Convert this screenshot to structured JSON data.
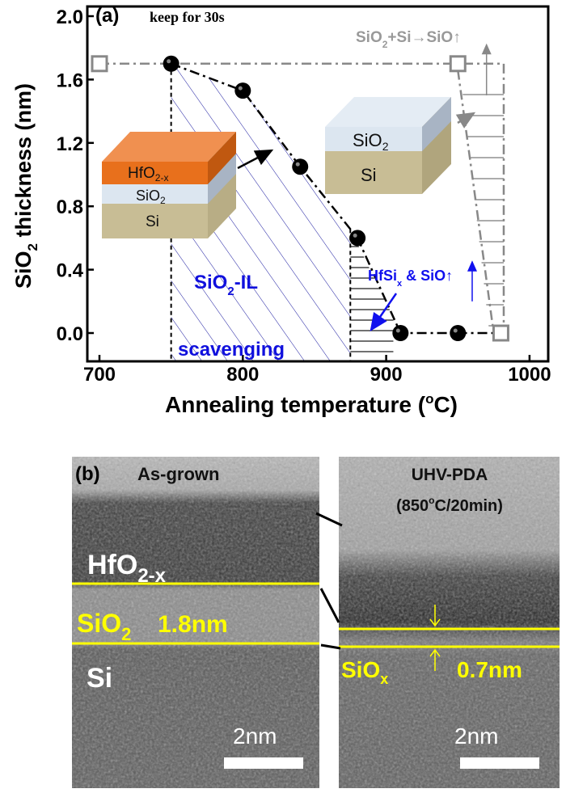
{
  "chart_data": {
    "type": "scatter",
    "panel_label": "(a)",
    "annotation_keep": "keep for 30s",
    "xlabel": "Annealing temperature (oC)",
    "xlabel_parts": {
      "main": "Annealing temperature (",
      "sup": "o",
      "end": "C)"
    },
    "ylabel_parts": {
      "pre": "SiO",
      "sub": "2",
      "post": " thickness (nm)"
    },
    "xlim": [
      690,
      1010
    ],
    "ylim": [
      -0.2,
      2.1
    ],
    "xticks": [
      "700",
      "800",
      "900",
      "1000"
    ],
    "xtick_values": [
      700,
      800,
      900,
      1000
    ],
    "yticks": [
      "0.0",
      "0.4",
      "0.8",
      "1.2",
      "1.6",
      "2.0"
    ],
    "ytick_values": [
      0.0,
      0.4,
      0.8,
      1.2,
      1.6,
      2.0
    ],
    "grid": false,
    "series": [
      {
        "marker": "filled-circle",
        "color": "#000000",
        "line": "dash-dot",
        "x": [
          750,
          800,
          840,
          880,
          910,
          950
        ],
        "y": [
          1.7,
          1.53,
          1.05,
          0.6,
          0.0,
          0.0
        ]
      },
      {
        "marker": "open-square",
        "color": "#888888",
        "line": "dash-dot",
        "x": [
          700,
          950,
          980
        ],
        "y": [
          1.7,
          1.7,
          0.0
        ]
      }
    ],
    "regions": {
      "scavenging": {
        "label_pre": "SiO",
        "label_sub": "2",
        "label_post": "-IL",
        "label2": "scavenging",
        "x_from": 750,
        "x_to": 875,
        "color": "#0000cc"
      },
      "hfsix": {
        "label_pre": "HfSi",
        "label_sub": "x",
        "label_post": " & SiO",
        "arrow": "↑",
        "x_from": 875,
        "x_to": 905,
        "color": "#0000ee"
      },
      "sio_desorption": {
        "label_pre": "SiO",
        "label_sub": "2",
        "label_post": "+Si",
        "arrow_mid": "→",
        "label_end": "SiO",
        "arrow": "↑",
        "color": "#999999"
      }
    },
    "insets": {
      "stack_left": {
        "layers": [
          "HfO",
          "SiO",
          "Si"
        ],
        "hf_sub": "2-x",
        "sio_sub": "2",
        "colors": [
          "#e8701c",
          "#dce6f0",
          "#c8bd95"
        ]
      },
      "stack_right": {
        "layers": [
          "SiO",
          "Si"
        ],
        "sio_sub": "2",
        "colors": [
          "#dce6f0",
          "#c8bd95"
        ]
      }
    }
  },
  "tem": {
    "panel_label": "(b)",
    "left": {
      "title": "As-grown",
      "hf_label": "HfO",
      "hf_sub": "2-x",
      "sio_label": "SiO",
      "sio_sub": "2",
      "thickness": "1.8nm",
      "si_label": "Si",
      "scale": "2nm"
    },
    "right": {
      "title": "UHV-PDA",
      "condition_pre": "(850",
      "condition_sup": "o",
      "condition_post": "C/20min)",
      "siox_label": "SiO",
      "siox_sub": "x",
      "thickness": "0.7nm",
      "scale": "2nm"
    },
    "line_color": "#ffff00"
  }
}
